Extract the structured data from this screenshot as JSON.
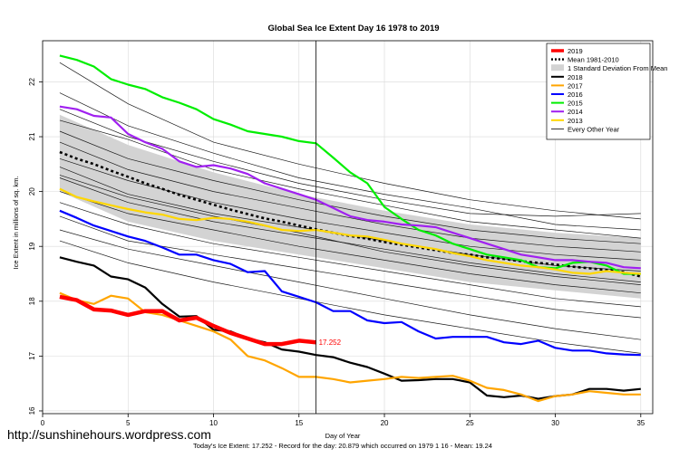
{
  "credit": "http://sunshinehours.wordpress.com",
  "footer": "Today's Ice Extent: 17.252  - Record for the day: 20.879 which occurred on 1979 1 16  - Mean: 19.24",
  "chart_data": {
    "type": "line",
    "title": "Global Sea Ice Extent Day 16 1978 to 2019",
    "xlabel": "Day of Year",
    "ylabel": "Ice Extent in millions of sq. km.",
    "xlim": [
      0,
      35.7
    ],
    "ylim": [
      15.95,
      22.75
    ],
    "x_ticks": [
      0,
      5,
      10,
      15,
      20,
      25,
      30,
      35
    ],
    "y_ticks": [
      16,
      17,
      18,
      19,
      20,
      21,
      22
    ],
    "grid": true,
    "vline_x": 16,
    "legend_position": "top-right",
    "end_annotation": {
      "x": 16,
      "y": 17.252,
      "text": "17.252"
    },
    "legend": [
      {
        "label": "2019",
        "color": "#ff0000",
        "style": "thick"
      },
      {
        "label": "Mean 1981-2010",
        "color": "#000000",
        "style": "dotted"
      },
      {
        "label": "1 Standard Deviation From Mean",
        "color": "#d3d3d3",
        "style": "box"
      },
      {
        "label": "2018",
        "color": "#000000",
        "style": "solid"
      },
      {
        "label": "2017",
        "color": "#ffa500",
        "style": "solid"
      },
      {
        "label": "2016",
        "color": "#0000ff",
        "style": "solid"
      },
      {
        "label": "2015",
        "color": "#00ee00",
        "style": "solid"
      },
      {
        "label": "2014",
        "color": "#a020f0",
        "style": "solid"
      },
      {
        "label": "2013",
        "color": "#ffd700",
        "style": "solid"
      },
      {
        "label": "Every Other Year",
        "color": "#000000",
        "style": "thin"
      }
    ],
    "band": {
      "x": [
        1,
        5,
        10,
        15,
        20,
        25,
        30,
        35
      ],
      "upper": [
        21.4,
        20.85,
        20.35,
        19.95,
        19.65,
        19.4,
        19.25,
        19.15
      ],
      "lower": [
        20.0,
        19.45,
        19.1,
        18.85,
        18.6,
        18.35,
        18.2,
        18.05
      ]
    },
    "mean": {
      "x": [
        1,
        2,
        3,
        4,
        5,
        6,
        7,
        8,
        9,
        10,
        11,
        12,
        13,
        14,
        15,
        16,
        17,
        18,
        19,
        20,
        21,
        22,
        23,
        24,
        25,
        26,
        27,
        28,
        29,
        30,
        31,
        32,
        33,
        34,
        35
      ],
      "y": [
        20.72,
        20.6,
        20.5,
        20.38,
        20.27,
        20.15,
        20.05,
        19.94,
        19.85,
        19.76,
        19.67,
        19.59,
        19.51,
        19.45,
        19.38,
        19.31,
        19.25,
        19.19,
        19.14,
        19.08,
        19.03,
        18.98,
        18.93,
        18.88,
        18.85,
        18.8,
        18.77,
        18.73,
        18.7,
        18.67,
        18.63,
        18.6,
        18.57,
        18.53,
        18.45
      ]
    },
    "background_years": [
      {
        "x": [
          1,
          5,
          10,
          15,
          20,
          25,
          30,
          35
        ],
        "y": [
          22.35,
          21.6,
          20.9,
          20.5,
          20.15,
          19.85,
          19.65,
          19.5
        ]
      },
      {
        "x": [
          1,
          5,
          10,
          15,
          20,
          25,
          30,
          35
        ],
        "y": [
          21.8,
          21.2,
          20.7,
          20.25,
          19.95,
          19.7,
          19.4,
          19.3
        ]
      },
      {
        "x": [
          1,
          5,
          10,
          15,
          20,
          25,
          30,
          35
        ],
        "y": [
          21.3,
          20.95,
          20.4,
          20.05,
          19.75,
          19.45,
          19.3,
          19.15
        ]
      },
      {
        "x": [
          1,
          5,
          10,
          15,
          20,
          25,
          30,
          35
        ],
        "y": [
          21.1,
          20.6,
          20.2,
          19.85,
          19.55,
          19.3,
          19.15,
          19.05
        ]
      },
      {
        "x": [
          1,
          5,
          10,
          15,
          20,
          25,
          30,
          35
        ],
        "y": [
          20.9,
          20.4,
          20.0,
          19.7,
          19.4,
          19.15,
          19.0,
          18.9
        ]
      },
      {
        "x": [
          1,
          5,
          10,
          15,
          20,
          25,
          30,
          35
        ],
        "y": [
          20.6,
          20.2,
          19.8,
          19.5,
          19.25,
          19.0,
          18.85,
          18.75
        ]
      },
      {
        "x": [
          1,
          5,
          10,
          15,
          20,
          25,
          30,
          35
        ],
        "y": [
          20.45,
          19.95,
          19.6,
          19.35,
          19.1,
          18.85,
          18.65,
          18.55
        ]
      },
      {
        "x": [
          1,
          5,
          10,
          15,
          20,
          25,
          30,
          35
        ],
        "y": [
          20.25,
          19.8,
          19.45,
          19.2,
          18.95,
          18.7,
          18.5,
          18.35
        ]
      },
      {
        "x": [
          1,
          5,
          10,
          15,
          20,
          25,
          30,
          35
        ],
        "y": [
          20.0,
          19.6,
          19.3,
          19.0,
          18.75,
          18.5,
          18.3,
          18.15
        ]
      },
      {
        "x": [
          1,
          5,
          10,
          15,
          20,
          25,
          30,
          35
        ],
        "y": [
          19.8,
          19.4,
          19.05,
          18.8,
          18.55,
          18.3,
          18.05,
          17.9
        ]
      },
      {
        "x": [
          1,
          5,
          10,
          15,
          20,
          25,
          30,
          35
        ],
        "y": [
          19.55,
          19.1,
          18.85,
          18.6,
          18.35,
          18.1,
          17.85,
          17.7
        ]
      },
      {
        "x": [
          1,
          5,
          10,
          15,
          20,
          25,
          30,
          35
        ],
        "y": [
          19.3,
          18.95,
          18.65,
          18.35,
          18.05,
          17.75,
          17.5,
          17.3
        ]
      },
      {
        "x": [
          1,
          5,
          10,
          15,
          20,
          25,
          30,
          35
        ],
        "y": [
          19.1,
          18.7,
          18.35,
          18.05,
          17.75,
          17.5,
          17.25,
          17.05
        ]
      },
      {
        "x": [
          1,
          5,
          10,
          15,
          20,
          25,
          30,
          35
        ],
        "y": [
          21.5,
          21.0,
          20.55,
          20.15,
          19.85,
          19.6,
          19.55,
          19.6
        ]
      },
      {
        "x": [
          1,
          5,
          10,
          15,
          20,
          25,
          30,
          35
        ],
        "y": [
          20.3,
          19.9,
          19.55,
          19.25,
          18.9,
          18.65,
          18.45,
          18.3
        ]
      }
    ],
    "series": [
      {
        "name": "2018",
        "color": "#000000",
        "x": [
          1,
          2,
          3,
          4,
          5,
          6,
          7,
          8,
          9,
          10,
          11,
          12,
          13,
          14,
          15,
          16,
          17,
          18,
          19,
          20,
          21,
          22,
          23,
          24,
          25,
          26,
          27,
          28,
          29,
          30,
          31,
          32,
          33,
          34,
          35
        ],
        "y": [
          18.8,
          18.72,
          18.65,
          18.45,
          18.4,
          18.25,
          17.95,
          17.72,
          17.73,
          17.48,
          17.45,
          17.32,
          17.25,
          17.12,
          17.08,
          17.02,
          16.98,
          16.88,
          16.8,
          16.68,
          16.55,
          16.56,
          16.58,
          16.58,
          16.52,
          16.28,
          16.25,
          16.28,
          16.22,
          16.27,
          16.3,
          16.4,
          16.4,
          16.37,
          16.4
        ]
      },
      {
        "name": "2017",
        "color": "#ffa500",
        "x": [
          1,
          2,
          3,
          4,
          5,
          6,
          7,
          8,
          9,
          10,
          11,
          12,
          13,
          14,
          15,
          16,
          17,
          18,
          19,
          20,
          21,
          22,
          23,
          24,
          25,
          26,
          27,
          28,
          29,
          30,
          31,
          32,
          33,
          34,
          35
        ],
        "y": [
          18.15,
          18.02,
          17.95,
          18.1,
          18.05,
          17.8,
          17.75,
          17.65,
          17.55,
          17.45,
          17.3,
          17.0,
          16.92,
          16.78,
          16.62,
          16.62,
          16.58,
          16.52,
          16.55,
          16.58,
          16.62,
          16.6,
          16.62,
          16.64,
          16.55,
          16.42,
          16.38,
          16.3,
          16.18,
          16.27,
          16.3,
          16.36,
          16.33,
          16.3,
          16.3
        ]
      },
      {
        "name": "2016",
        "color": "#0000ff",
        "x": [
          1,
          2,
          3,
          4,
          5,
          6,
          7,
          8,
          9,
          10,
          11,
          12,
          13,
          14,
          15,
          16,
          17,
          18,
          19,
          20,
          21,
          22,
          23,
          24,
          25,
          26,
          27,
          28,
          29,
          30,
          31,
          32,
          33,
          34,
          35
        ],
        "y": [
          19.65,
          19.52,
          19.38,
          19.28,
          19.18,
          19.1,
          18.98,
          18.85,
          18.85,
          18.75,
          18.68,
          18.53,
          18.55,
          18.18,
          18.08,
          17.98,
          17.82,
          17.82,
          17.65,
          17.6,
          17.62,
          17.45,
          17.32,
          17.35,
          17.35,
          17.35,
          17.25,
          17.22,
          17.28,
          17.15,
          17.1,
          17.1,
          17.05,
          17.03,
          17.02
        ]
      },
      {
        "name": "2015",
        "color": "#00ee00",
        "x": [
          1,
          2,
          3,
          4,
          5,
          6,
          7,
          8,
          9,
          10,
          11,
          12,
          13,
          14,
          15,
          16,
          17,
          18,
          19,
          20,
          21,
          22,
          23,
          24,
          25,
          26,
          27,
          28,
          29,
          30,
          31,
          32,
          33,
          34,
          35
        ],
        "y": [
          22.48,
          22.4,
          22.28,
          22.05,
          21.95,
          21.87,
          21.72,
          21.62,
          21.5,
          21.32,
          21.22,
          21.1,
          21.05,
          21.0,
          20.92,
          20.88,
          20.62,
          20.35,
          20.15,
          19.72,
          19.5,
          19.3,
          19.2,
          19.05,
          18.95,
          18.85,
          18.8,
          18.75,
          18.62,
          18.6,
          18.7,
          18.72,
          18.65,
          18.5,
          18.5
        ]
      },
      {
        "name": "2014",
        "color": "#a020f0",
        "x": [
          1,
          2,
          3,
          4,
          5,
          6,
          7,
          8,
          9,
          10,
          11,
          12,
          13,
          14,
          15,
          16,
          17,
          18,
          19,
          20,
          21,
          22,
          23,
          24,
          25,
          26,
          27,
          28,
          29,
          30,
          31,
          32,
          33,
          34,
          35
        ],
        "y": [
          21.55,
          21.5,
          21.38,
          21.35,
          21.05,
          20.9,
          20.78,
          20.55,
          20.45,
          20.48,
          20.42,
          20.32,
          20.15,
          20.05,
          19.95,
          19.85,
          19.7,
          19.55,
          19.48,
          19.45,
          19.4,
          19.38,
          19.35,
          19.25,
          19.15,
          19.05,
          18.95,
          18.85,
          18.8,
          18.75,
          18.75,
          18.72,
          18.7,
          18.62,
          18.6
        ]
      },
      {
        "name": "2013",
        "color": "#ffd700",
        "x": [
          1,
          2,
          3,
          4,
          5,
          6,
          7,
          8,
          9,
          10,
          11,
          12,
          13,
          14,
          15,
          16,
          17,
          18,
          19,
          20,
          21,
          22,
          23,
          24,
          25,
          26,
          27,
          28,
          29,
          30,
          31,
          32,
          33,
          34,
          35
        ],
        "y": [
          20.05,
          19.9,
          19.82,
          19.75,
          19.68,
          19.62,
          19.58,
          19.5,
          19.48,
          19.52,
          19.5,
          19.45,
          19.38,
          19.3,
          19.28,
          19.3,
          19.25,
          19.2,
          19.18,
          19.12,
          19.05,
          19.0,
          18.95,
          18.88,
          18.82,
          18.75,
          18.7,
          18.65,
          18.62,
          18.58,
          18.52,
          18.5,
          18.55,
          18.52,
          18.5
        ]
      },
      {
        "name": "2019",
        "color": "#ff0000",
        "x": [
          1,
          2,
          3,
          4,
          5,
          6,
          7,
          8,
          9,
          10,
          11,
          12,
          13,
          14,
          15,
          16
        ],
        "y": [
          18.08,
          18.02,
          17.85,
          17.83,
          17.75,
          17.82,
          17.82,
          17.65,
          17.7,
          17.55,
          17.42,
          17.32,
          17.22,
          17.22,
          17.28,
          17.25
        ]
      }
    ]
  }
}
